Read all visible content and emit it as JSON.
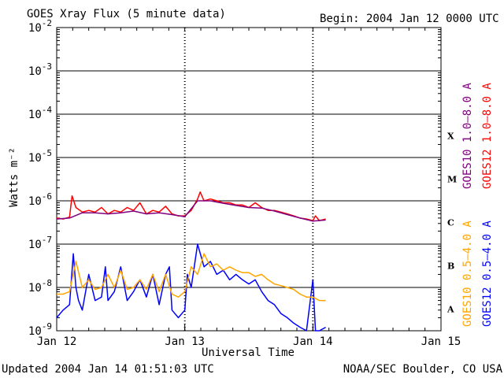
{
  "header": {
    "title": "GOES Xray Flux (5 minute data)",
    "begin": "Begin:  2004 Jan 12 0000 UTC"
  },
  "footer": {
    "updated": "Updated 2004 Jan 14 01:51:03 UTC",
    "credit": "NOAA/SEC Boulder, CO USA"
  },
  "chart_data": {
    "type": "line",
    "title": "GOES Xray Flux (5 minute data)",
    "xlabel": "Universal Time",
    "ylabel": "Watts m⁻²",
    "yscale": "log",
    "ylim": [
      1e-09,
      0.01
    ],
    "xlim": [
      0,
      3
    ],
    "x_unit": "days since 2004 Jan 12 0000 UTC",
    "x_ticks": [
      {
        "label": "Jan 12",
        "value": 0
      },
      {
        "label": "Jan 13",
        "value": 1
      },
      {
        "label": "Jan 14",
        "value": 2
      },
      {
        "label": "Jan 15",
        "value": 3
      }
    ],
    "y_ticks": [
      {
        "mant": "10",
        "exp": "-2"
      },
      {
        "mant": "10",
        "exp": "-3"
      },
      {
        "mant": "10",
        "exp": "-4"
      },
      {
        "mant": "10",
        "exp": "-5"
      },
      {
        "mant": "10",
        "exp": "-6"
      },
      {
        "mant": "10",
        "exp": "-7"
      },
      {
        "mant": "10",
        "exp": "-8"
      },
      {
        "mant": "10",
        "exp": "-9"
      }
    ],
    "flare_classes": [
      {
        "label": "X",
        "center_exp": -4.5
      },
      {
        "label": "M",
        "center_exp": -5.5
      },
      {
        "label": "C",
        "center_exp": -6.5
      },
      {
        "label": "B",
        "center_exp": -7.5
      },
      {
        "label": "A",
        "center_exp": -8.5
      }
    ],
    "grid": true,
    "legend_position": "right, vertical",
    "series": [
      {
        "name": "GOES12 0.5–4.0 A",
        "color": "#0000ff",
        "x": [
          0,
          0.05,
          0.1,
          0.13,
          0.15,
          0.17,
          0.2,
          0.25,
          0.3,
          0.35,
          0.38,
          0.4,
          0.45,
          0.5,
          0.55,
          0.6,
          0.65,
          0.7,
          0.75,
          0.8,
          0.85,
          0.88,
          0.9,
          0.95,
          1.0,
          1.02,
          1.05,
          1.1,
          1.15,
          1.2,
          1.25,
          1.3,
          1.35,
          1.4,
          1.45,
          1.5,
          1.55,
          1.6,
          1.65,
          1.7,
          1.75,
          1.8,
          1.85,
          1.9,
          1.95,
          2.0,
          2.02,
          2.05,
          2.1
        ],
        "y": [
          2e-09,
          3e-09,
          4e-09,
          6e-08,
          1e-08,
          5e-09,
          3e-09,
          2e-08,
          5e-09,
          6e-09,
          3e-08,
          5e-09,
          8e-09,
          3e-08,
          5e-09,
          8e-09,
          1.5e-08,
          6e-09,
          2e-08,
          4e-09,
          2e-08,
          3e-08,
          3e-09,
          2e-09,
          3e-09,
          2e-08,
          1e-08,
          1e-07,
          3e-08,
          4e-08,
          2e-08,
          2.5e-08,
          1.5e-08,
          2e-08,
          1.5e-08,
          1.2e-08,
          1.5e-08,
          8e-09,
          5e-09,
          4e-09,
          2.5e-09,
          2e-09,
          1.5e-09,
          1.2e-09,
          1e-09,
          1.5e-08,
          1e-09,
          1e-09,
          1.2e-09
        ]
      },
      {
        "name": "GOES10 0.5–4.0 A",
        "color": "#ffa500",
        "x": [
          0,
          0.05,
          0.1,
          0.15,
          0.2,
          0.25,
          0.3,
          0.35,
          0.4,
          0.45,
          0.5,
          0.55,
          0.6,
          0.65,
          0.7,
          0.75,
          0.8,
          0.85,
          0.9,
          0.95,
          1.0,
          1.05,
          1.1,
          1.15,
          1.2,
          1.25,
          1.3,
          1.35,
          1.4,
          1.45,
          1.5,
          1.55,
          1.6,
          1.65,
          1.7,
          1.75,
          1.8,
          1.85,
          1.9,
          1.95,
          2.0,
          2.05,
          2.1
        ],
        "y": [
          7e-09,
          7e-09,
          8e-09,
          4e-08,
          1e-08,
          1.5e-08,
          9e-09,
          1e-08,
          2e-08,
          1e-08,
          2.5e-08,
          9e-09,
          1e-08,
          1.5e-08,
          9e-09,
          2e-08,
          8e-09,
          2e-08,
          7e-09,
          6e-09,
          8e-09,
          3e-08,
          2e-08,
          6e-08,
          3e-08,
          3.5e-08,
          2.5e-08,
          3e-08,
          2.5e-08,
          2.2e-08,
          2.2e-08,
          1.8e-08,
          2e-08,
          1.5e-08,
          1.2e-08,
          1.1e-08,
          1e-08,
          9e-09,
          7e-09,
          6e-09,
          6e-09,
          5e-09,
          5e-09
        ]
      },
      {
        "name": "GOES12 1.0–8.0 A",
        "color": "#ff0000",
        "x": [
          0,
          0.05,
          0.1,
          0.12,
          0.15,
          0.2,
          0.25,
          0.3,
          0.35,
          0.4,
          0.45,
          0.5,
          0.55,
          0.6,
          0.65,
          0.7,
          0.75,
          0.8,
          0.85,
          0.9,
          0.95,
          1.0,
          1.05,
          1.1,
          1.12,
          1.15,
          1.2,
          1.25,
          1.3,
          1.35,
          1.4,
          1.45,
          1.5,
          1.55,
          1.6,
          1.65,
          1.7,
          1.75,
          1.8,
          1.85,
          1.9,
          1.95,
          2.0,
          2.02,
          2.05,
          2.1
        ],
        "y": [
          4e-07,
          3.8e-07,
          4.2e-07,
          1.3e-06,
          7e-07,
          5.5e-07,
          6e-07,
          5.5e-07,
          7e-07,
          5e-07,
          6e-07,
          5.5e-07,
          7e-07,
          6e-07,
          9e-07,
          5e-07,
          6e-07,
          5.5e-07,
          7.5e-07,
          5e-07,
          4.5e-07,
          4.5e-07,
          6e-07,
          1.1e-06,
          1.6e-06,
          1e-06,
          1.1e-06,
          1e-06,
          9e-07,
          9e-07,
          8e-07,
          8e-07,
          7e-07,
          9e-07,
          7e-07,
          6e-07,
          6e-07,
          5.5e-07,
          5e-07,
          4.5e-07,
          4e-07,
          3.8e-07,
          3.5e-07,
          4.5e-07,
          3.5e-07,
          3.8e-07
        ]
      },
      {
        "name": "GOES10 1.0–8.0 A",
        "color": "#800080",
        "x": [
          0,
          0.1,
          0.2,
          0.3,
          0.4,
          0.5,
          0.6,
          0.7,
          0.8,
          0.9,
          1.0,
          1.1,
          1.2,
          1.3,
          1.4,
          1.5,
          1.6,
          1.7,
          1.8,
          1.9,
          2.0,
          2.1
        ],
        "y": [
          3.8e-07,
          4e-07,
          5.3e-07,
          5.3e-07,
          5e-07,
          5.3e-07,
          5.8e-07,
          5e-07,
          5.3e-07,
          4.8e-07,
          4.3e-07,
          1e-06,
          1e-06,
          8.8e-07,
          7.8e-07,
          7e-07,
          6.8e-07,
          5.8e-07,
          4.8e-07,
          4e-07,
          3.4e-07,
          3.6e-07
        ]
      }
    ]
  }
}
